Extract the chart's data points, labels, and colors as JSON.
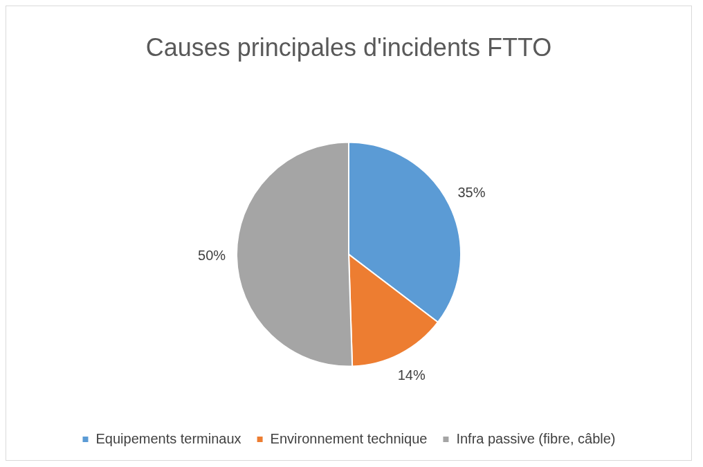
{
  "chart_data": {
    "type": "pie",
    "title": "Causes principales d'incidents FTTO",
    "categories": [
      "Equipements terminaux",
      "Environnement technique",
      "Infra passive (fibre, câble)"
    ],
    "values": [
      35,
      14,
      50
    ],
    "value_labels": [
      "35%",
      "14%",
      "50%"
    ],
    "colors": [
      "#5b9bd5",
      "#ed7d31",
      "#a5a5a5"
    ],
    "legend": "bottom"
  }
}
